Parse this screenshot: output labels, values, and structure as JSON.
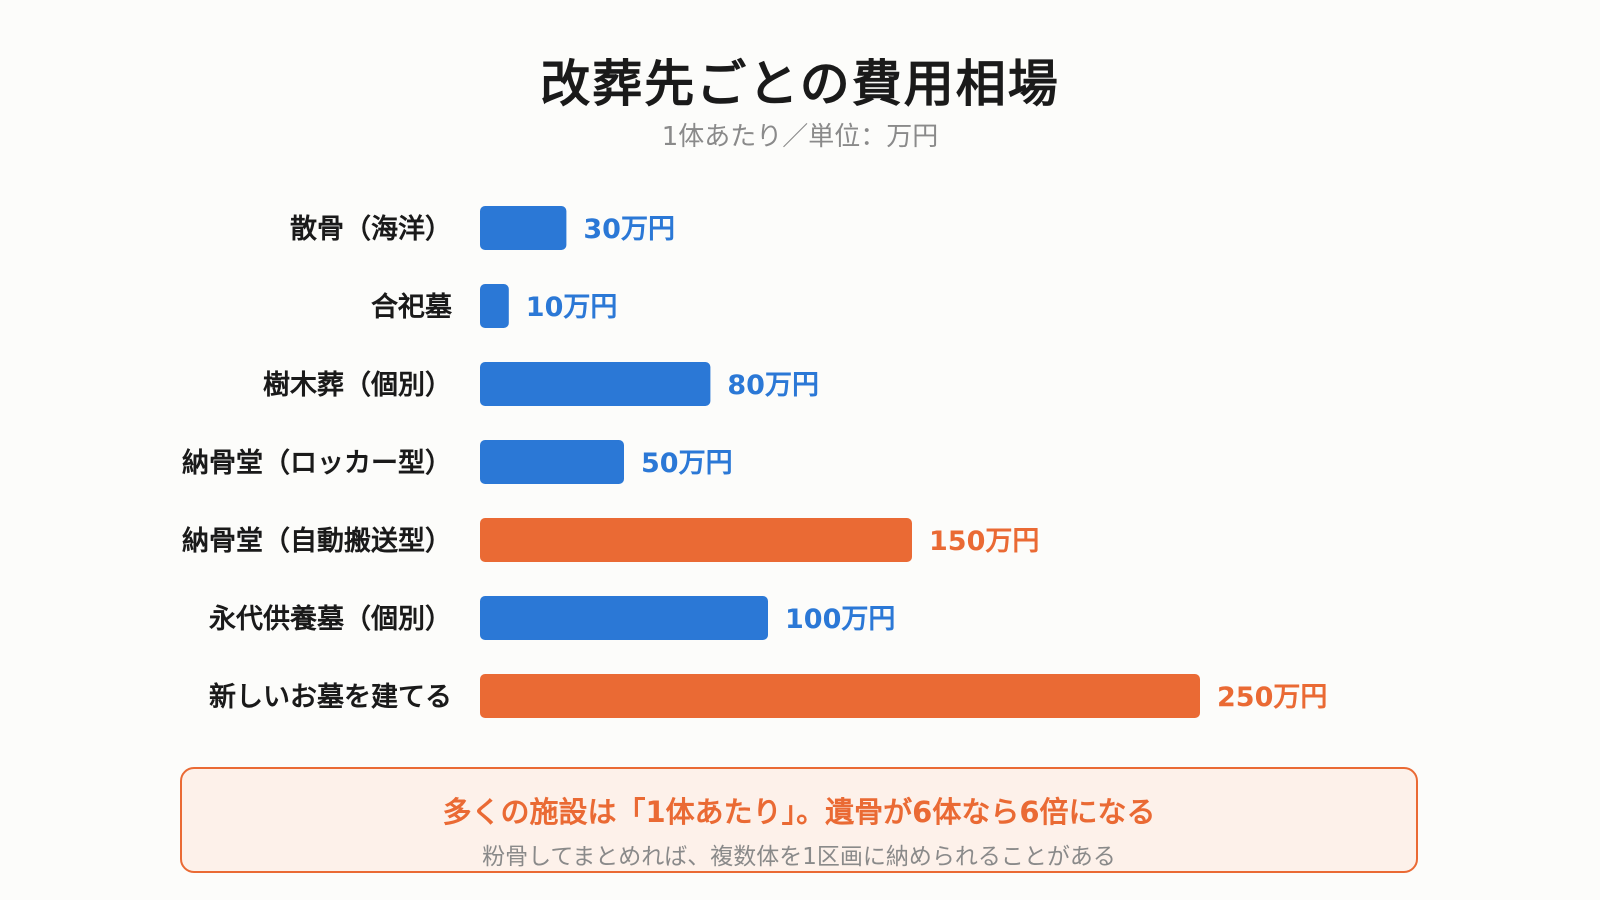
{
  "title": "改葬先ごとの費用相場",
  "subtitle": "1体あたり／単位：万円",
  "colors": {
    "standard": "#2b78d6",
    "highlight": "#ea6a34"
  },
  "chart_data": {
    "type": "bar",
    "orientation": "horizontal",
    "unit": "万円",
    "categories": [
      "散骨（海洋）",
      "合祀墓",
      "樹木葬（個別）",
      "納骨堂（ロッカー型）",
      "納骨堂（自動搬送型）",
      "永代供養墓（個別）",
      "新しいお墓を建てる"
    ],
    "values": [
      30,
      10,
      80,
      50,
      150,
      100,
      250
    ],
    "value_labels": [
      "30万円",
      "10万円",
      "80万円",
      "50万円",
      "150万円",
      "100万円",
      "250万円"
    ],
    "highlight": [
      false,
      false,
      false,
      false,
      true,
      false,
      true
    ],
    "xlim": [
      0,
      250
    ],
    "grid": false,
    "legend": "none"
  },
  "note": {
    "main": "多くの施設は「1体あたり」。遺骨が6体なら6倍になる",
    "sub": "粉骨してまとめれば、複数体を1区画に納められることがある"
  }
}
